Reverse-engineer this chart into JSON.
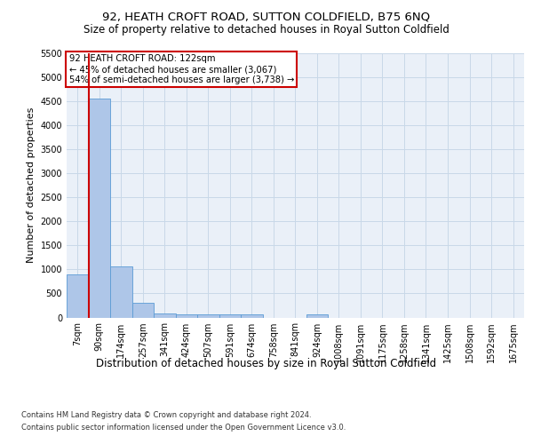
{
  "title1": "92, HEATH CROFT ROAD, SUTTON COLDFIELD, B75 6NQ",
  "title2": "Size of property relative to detached houses in Royal Sutton Coldfield",
  "xlabel": "Distribution of detached houses by size in Royal Sutton Coldfield",
  "ylabel": "Number of detached properties",
  "footnote1": "Contains HM Land Registry data © Crown copyright and database right 2024.",
  "footnote2": "Contains public sector information licensed under the Open Government Licence v3.0.",
  "bin_labels": [
    "7sqm",
    "90sqm",
    "174sqm",
    "257sqm",
    "341sqm",
    "424sqm",
    "507sqm",
    "591sqm",
    "674sqm",
    "758sqm",
    "841sqm",
    "924sqm",
    "1008sqm",
    "1091sqm",
    "1175sqm",
    "1258sqm",
    "1341sqm",
    "1425sqm",
    "1508sqm",
    "1592sqm",
    "1675sqm"
  ],
  "bar_values": [
    900,
    4550,
    1060,
    300,
    90,
    70,
    60,
    60,
    60,
    0,
    0,
    60,
    0,
    0,
    0,
    0,
    0,
    0,
    0,
    0,
    0
  ],
  "bar_color": "#aec6e8",
  "bar_edgecolor": "#5b9bd5",
  "vline_color": "#cc0000",
  "annotation_text": "92 HEATH CROFT ROAD: 122sqm\n← 45% of detached houses are smaller (3,067)\n54% of semi-detached houses are larger (3,738) →",
  "annotation_box_color": "#cc0000",
  "ylim": [
    0,
    5500
  ],
  "yticks": [
    0,
    500,
    1000,
    1500,
    2000,
    2500,
    3000,
    3500,
    4000,
    4500,
    5000,
    5500
  ],
  "bg_color": "#eaf0f8",
  "plot_bg": "#ffffff",
  "grid_color": "#c8d8e8",
  "title1_fontsize": 9.5,
  "title2_fontsize": 8.5,
  "ylabel_fontsize": 8,
  "xlabel_fontsize": 8.5,
  "tick_fontsize": 7,
  "footnote_fontsize": 6
}
